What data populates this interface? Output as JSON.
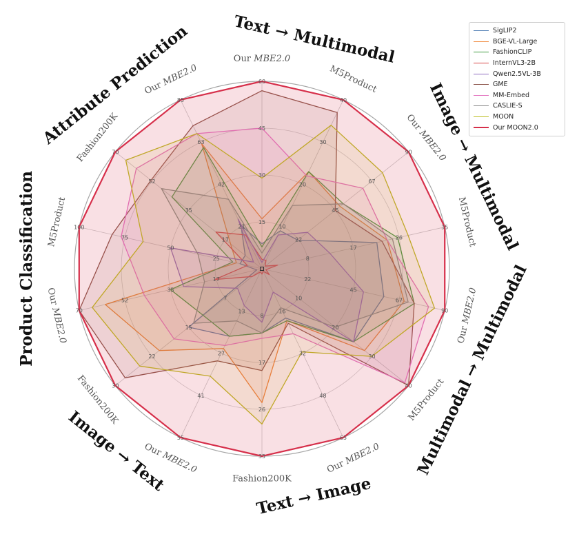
{
  "chart_data": {
    "type": "radar",
    "title": "",
    "groups": [
      "Text → Multimodal",
      "Image → Multimodal",
      "Multimodal → Multimodal",
      "Text → Image",
      "Image → Text",
      "Product Classification",
      "Attribute Prediction"
    ],
    "axes": [
      {
        "label": "Our MBE2.0",
        "ticks": [
          "15",
          "30",
          "45",
          "60"
        ],
        "max": 60
      },
      {
        "label": "M5Product",
        "ticks": [
          "10",
          "20",
          "30",
          "40"
        ],
        "max": 40
      },
      {
        "label": "Our MBE2.0",
        "ticks": [
          "22",
          "45",
          "67",
          "90"
        ],
        "max": 90
      },
      {
        "label": "M5Product",
        "ticks": [
          "8",
          "17",
          "26",
          "35"
        ],
        "max": 35
      },
      {
        "label": "Our MBE2.0",
        "ticks": [
          "22",
          "45",
          "67",
          "90"
        ],
        "max": 90
      },
      {
        "label": "M5Product",
        "ticks": [
          "10",
          "20",
          "30",
          "40"
        ],
        "max": 40
      },
      {
        "label": "Our MBE2.0",
        "ticks": [
          "16",
          "32",
          "48",
          "65"
        ],
        "max": 65
      },
      {
        "label": "Fashion200K",
        "ticks": [
          "8",
          "17",
          "26",
          "35"
        ],
        "max": 35
      },
      {
        "label": "Our MBE2.0",
        "ticks": [
          "13",
          "27",
          "41",
          "55"
        ],
        "max": 55
      },
      {
        "label": "Fashion200K",
        "ticks": [
          "7",
          "15",
          "22",
          "30"
        ],
        "max": 30
      },
      {
        "label": "Our MBE2.0",
        "ticks": [
          "17",
          "35",
          "52",
          "70"
        ],
        "max": 70
      },
      {
        "label": "M5Product",
        "ticks": [
          "25",
          "50",
          "75",
          "100"
        ],
        "max": 100
      },
      {
        "label": "Fashion200K",
        "ticks": [
          "17",
          "35",
          "52",
          "70"
        ],
        "max": 70
      },
      {
        "label": "Our MBE2.0",
        "ticks": [
          "21",
          "42",
          "63",
          "85"
        ],
        "max": 85
      }
    ],
    "series": [
      {
        "name": "SigLIP2",
        "color": "#4c7cb3",
        "values": [
          8,
          9,
          22,
          22,
          60,
          25,
          19,
          12,
          22,
          15,
          2,
          12,
          8,
          22
        ]
      },
      {
        "name": "BGE-VL-Large",
        "color": "#f08a3e",
        "values": [
          16,
          23,
          48,
          24,
          70,
          28,
          20,
          25,
          26,
          21,
          60,
          14,
          15,
          63
        ]
      },
      {
        "name": "FashionCLIP",
        "color": "#3d9a3d",
        "values": [
          7,
          23,
          50,
          26,
          75,
          25,
          20,
          12,
          22,
          12,
          35,
          16,
          43,
          61
        ]
      },
      {
        "name": "InternVL3-2B",
        "color": "#d64545",
        "values": [
          3,
          2,
          2,
          3,
          2,
          2,
          1,
          1,
          1,
          2,
          18,
          8,
          22,
          17
        ]
      },
      {
        "name": "Qwen2.5VL-3B",
        "color": "#8e6bbf",
        "values": [
          2,
          8,
          28,
          13,
          50,
          25,
          9,
          10,
          12,
          5,
          30,
          50,
          4,
          25
        ]
      },
      {
        "name": "GME",
        "color": "#8c564b",
        "values": [
          57,
          37,
          45,
          23,
          75,
          40,
          21,
          19,
          30,
          28,
          70,
          82,
          53,
          72
        ]
      },
      {
        "name": "MM-Embed",
        "color": "#e377c2",
        "values": [
          45,
          22,
          62,
          24,
          82,
          39,
          25,
          13,
          25,
          18,
          45,
          77,
          60,
          68
        ]
      },
      {
        "name": "CASLIE-S",
        "color": "#8c8c8c",
        "values": [
          5,
          15,
          50,
          25,
          72,
          20,
          15,
          12,
          17,
          14,
          22,
          35,
          48,
          35
        ]
      },
      {
        "name": "MOON",
        "color": "#bcbd22",
        "values": [
          29,
          34,
          74,
          28,
          85,
          30,
          32,
          29,
          35,
          25,
          65,
          65,
          65,
          68
        ]
      },
      {
        "name": "Our MOON2.0",
        "color": "#d62f4a",
        "values": [
          60,
          40,
          90,
          35,
          90,
          40,
          65,
          35,
          55,
          30,
          70,
          100,
          70,
          85
        ]
      }
    ]
  }
}
